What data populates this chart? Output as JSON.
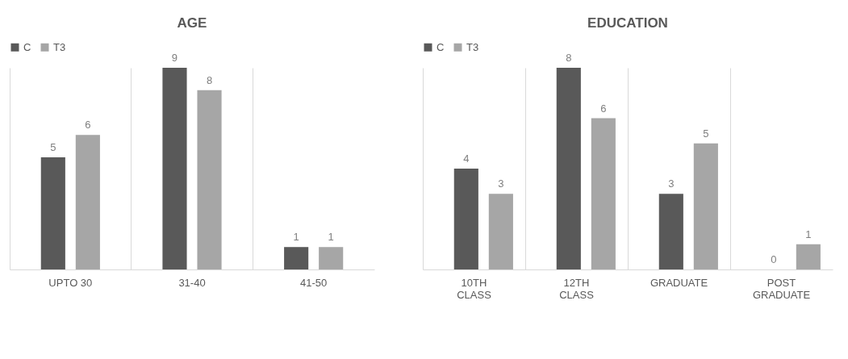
{
  "chart_data": [
    {
      "type": "bar",
      "title": "AGE",
      "categories": [
        "UPTO 30",
        "31-40",
        "41-50"
      ],
      "series": [
        {
          "name": "C",
          "color": "#595959",
          "values": [
            5,
            9,
            1
          ]
        },
        {
          "name": "T3",
          "color": "#a6a6a6",
          "values": [
            6,
            8,
            1
          ]
        }
      ],
      "data_labels": true,
      "legend": "top",
      "grid": "x",
      "tick_labels": "x"
    },
    {
      "type": "bar",
      "title": "EDUCATION",
      "categories": [
        "10TH\nCLASS",
        "12TH\nCLASS",
        "GRADUATE",
        "POST\nGRADUATE"
      ],
      "series": [
        {
          "name": "C",
          "color": "#595959",
          "values": [
            4,
            8,
            3,
            0
          ]
        },
        {
          "name": "T3",
          "color": "#a6a6a6",
          "values": [
            3,
            6,
            5,
            1
          ]
        }
      ],
      "data_labels": true,
      "legend": "top",
      "grid": "x",
      "tick_labels": "x"
    }
  ]
}
